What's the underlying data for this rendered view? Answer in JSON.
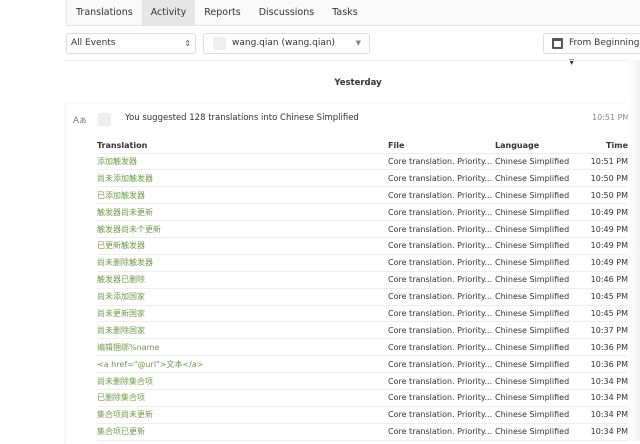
{
  "tabs": [
    "Translations",
    "Activity",
    "Reports",
    "Discussions",
    "Tasks"
  ],
  "active_tab": "Activity",
  "filters": {
    "event": "All Events",
    "user": "wang.qian (wang.qian)",
    "range": "From Beginning"
  },
  "day_label": "Yesterday",
  "activity": {
    "summary": "You suggested 128 translations into Chinese Simplified",
    "time": "10:51 PM"
  },
  "table": {
    "headers": [
      "Translation",
      "File",
      "Language",
      "Time"
    ],
    "rows": [
      [
        "添加触发器",
        "Core translation. Priority...",
        "Chinese Simplified",
        "10:51 PM"
      ],
      [
        "尚未添加触发器",
        "Core translation. Priority...",
        "Chinese Simplified",
        "10:50 PM"
      ],
      [
        "已添加触发器",
        "Core translation. Priority...",
        "Chinese Simplified",
        "10:50 PM"
      ],
      [
        "触发器尚未更新",
        "Core translation. Priority...",
        "Chinese Simplified",
        "10:49 PM"
      ],
      [
        "触发器尚未个更新",
        "Core translation. Priority...",
        "Chinese Simplified",
        "10:49 PM"
      ],
      [
        "已更新触发器",
        "Core translation. Priority...",
        "Chinese Simplified",
        "10:49 PM"
      ],
      [
        "尚未删除触发器",
        "Core translation. Priority...",
        "Chinese Simplified",
        "10:49 PM"
      ],
      [
        "触发器已删除",
        "Core translation. Priority...",
        "Chinese Simplified",
        "10:46 PM"
      ],
      [
        "尚未添加国家",
        "Core translation. Priority...",
        "Chinese Simplified",
        "10:45 PM"
      ],
      [
        "尚未更新国家",
        "Core translation. Priority...",
        "Chinese Simplified",
        "10:45 PM"
      ],
      [
        "尚未删除国家",
        "Core translation. Priority...",
        "Chinese Simplified",
        "10:37 PM"
      ],
      [
        "编辑捆绑%name",
        "Core translation. Priority...",
        "Chinese Simplified",
        "10:36 PM"
      ],
      [
        "<a href=\"@url\">文本</a>",
        "Core translation. Priority...",
        "Chinese Simplified",
        "10:36 PM"
      ],
      [
        "尚未删除集合项",
        "Core translation. Priority...",
        "Chinese Simplified",
        "10:34 PM"
      ],
      [
        "已删除集合项",
        "Core translation. Priority...",
        "Chinese Simplified",
        "10:34 PM"
      ],
      [
        "集合项尚未更新",
        "Core translation. Priority...",
        "Chinese Simplified",
        "10:34 PM"
      ],
      [
        "集合项已更新",
        "Core translation. Priority...",
        "Chinese Simplified",
        "10:34 PM"
      ]
    ]
  }
}
